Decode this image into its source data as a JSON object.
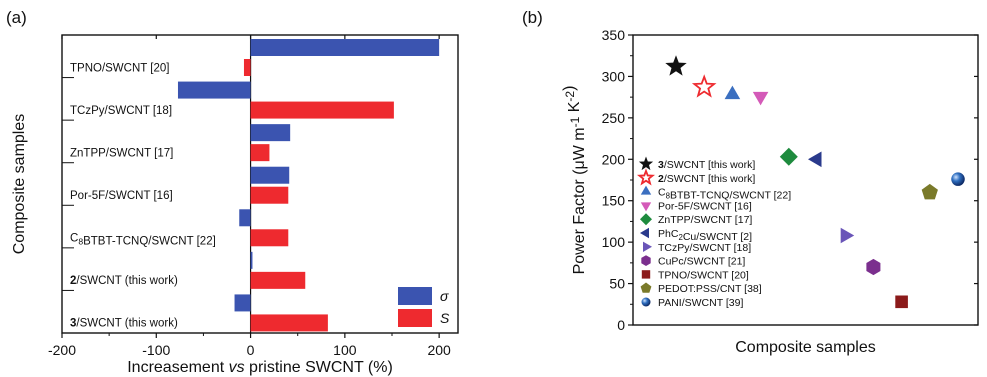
{
  "chart_data": [
    {
      "type": "bar",
      "orientation": "horizontal",
      "panel_label": "(a)",
      "xlabel_parts": [
        "Increasement ",
        "vs",
        " pristine SWCNT (%)"
      ],
      "ylabel": "Composite samples",
      "xlim": [
        -200,
        220
      ],
      "xticks": [
        -200,
        -100,
        0,
        100,
        200
      ],
      "categories": [
        {
          "parts": [
            {
              "t": "TPNO/SWCNT [20]"
            }
          ]
        },
        {
          "parts": [
            {
              "t": "TCzPy/SWCNT [18]"
            }
          ]
        },
        {
          "parts": [
            {
              "t": "ZnTPP/SWCNT [17]"
            }
          ]
        },
        {
          "parts": [
            {
              "t": "Por-5F/SWCNT [16]"
            }
          ]
        },
        {
          "parts": [
            {
              "t": "C"
            },
            {
              "t": "8",
              "sub": true
            },
            {
              "t": "BTBT-TCNQ/SWCNT [22]"
            }
          ]
        },
        {
          "parts": [
            {
              "t": "2",
              "bold": true
            },
            {
              "t": "/SWCNT (this work)"
            }
          ]
        },
        {
          "parts": [
            {
              "t": "3",
              "bold": true
            },
            {
              "t": "/SWCNT (this work)"
            }
          ]
        }
      ],
      "series": [
        {
          "name": "σ",
          "color": "#3b54b0",
          "values": [
            200,
            -77,
            42,
            41,
            -12,
            2,
            -17
          ]
        },
        {
          "name": "S",
          "color": "#ee2a2f",
          "values": [
            -7,
            152,
            20,
            40,
            40,
            58,
            82
          ]
        }
      ],
      "legend_position": "bottom-right"
    },
    {
      "type": "scatter",
      "panel_label": "(b)",
      "xlabel": "Composite samples",
      "ylabel_parts": [
        {
          "t": "Power Factor ("
        },
        {
          "t": "μ"
        },
        {
          "t": "W m"
        },
        {
          "t": "-1",
          "sup": true
        },
        {
          "t": " K"
        },
        {
          "t": "-2",
          "sup": true
        },
        {
          "t": ")"
        }
      ],
      "ylim": [
        0,
        350
      ],
      "yticks": [
        0,
        50,
        100,
        150,
        200,
        250,
        300,
        350
      ],
      "legend_position": "bottom-left",
      "points": [
        {
          "x": 1,
          "y": 312,
          "marker": "star",
          "color": "#111111",
          "label_parts": [
            {
              "t": "3",
              "bold": true
            },
            {
              "t": "/SWCNT [this work]"
            }
          ]
        },
        {
          "x": 2,
          "y": 287,
          "marker": "star-open",
          "color": "#ee2a2f",
          "label_parts": [
            {
              "t": "2",
              "bold": true
            },
            {
              "t": "/SWCNT [this work]"
            }
          ]
        },
        {
          "x": 3,
          "y": 278,
          "marker": "triangle-up",
          "color": "#3b6fc0",
          "label_parts": [
            {
              "t": "C"
            },
            {
              "t": "8",
              "sub": true
            },
            {
              "t": "BTBT-TCNQ/SWCNT [22]"
            }
          ]
        },
        {
          "x": 4,
          "y": 276,
          "marker": "triangle-down",
          "color": "#d45ab8",
          "label_parts": [
            {
              "t": "Por-5F/SWCNT [16]"
            }
          ]
        },
        {
          "x": 5,
          "y": 203,
          "marker": "diamond",
          "color": "#1e8b3e",
          "label_parts": [
            {
              "t": "ZnTPP/SWCNT [17]"
            }
          ]
        },
        {
          "x": 6,
          "y": 200,
          "marker": "triangle-left",
          "color": "#2a3a8c",
          "label_parts": [
            {
              "t": "PhC"
            },
            {
              "t": "2",
              "sub": true
            },
            {
              "t": "Cu/SWCNT [2]"
            }
          ]
        },
        {
          "x": 7,
          "y": 108,
          "marker": "triangle-right",
          "color": "#6a55b8",
          "label_parts": [
            {
              "t": "TCzPy/SWCNT [18]"
            }
          ]
        },
        {
          "x": 8,
          "y": 70,
          "marker": "hexagon",
          "color": "#7b2f8e",
          "label_parts": [
            {
              "t": "CuPc/SWCNT [21]"
            }
          ]
        },
        {
          "x": 9,
          "y": 28,
          "marker": "square",
          "color": "#8b1a1a",
          "label_parts": [
            {
              "t": "TPNO/SWCNT [20]"
            }
          ]
        },
        {
          "x": 10,
          "y": 160,
          "marker": "pentagon",
          "color": "#7a7a2a",
          "label_parts": [
            {
              "t": "PEDOT:PSS/CNT [38]"
            }
          ]
        },
        {
          "x": 11,
          "y": 176,
          "marker": "sphere",
          "color": "#2f6fc0",
          "label_parts": [
            {
              "t": "PANI/SWCNT [39]"
            }
          ]
        }
      ]
    }
  ]
}
